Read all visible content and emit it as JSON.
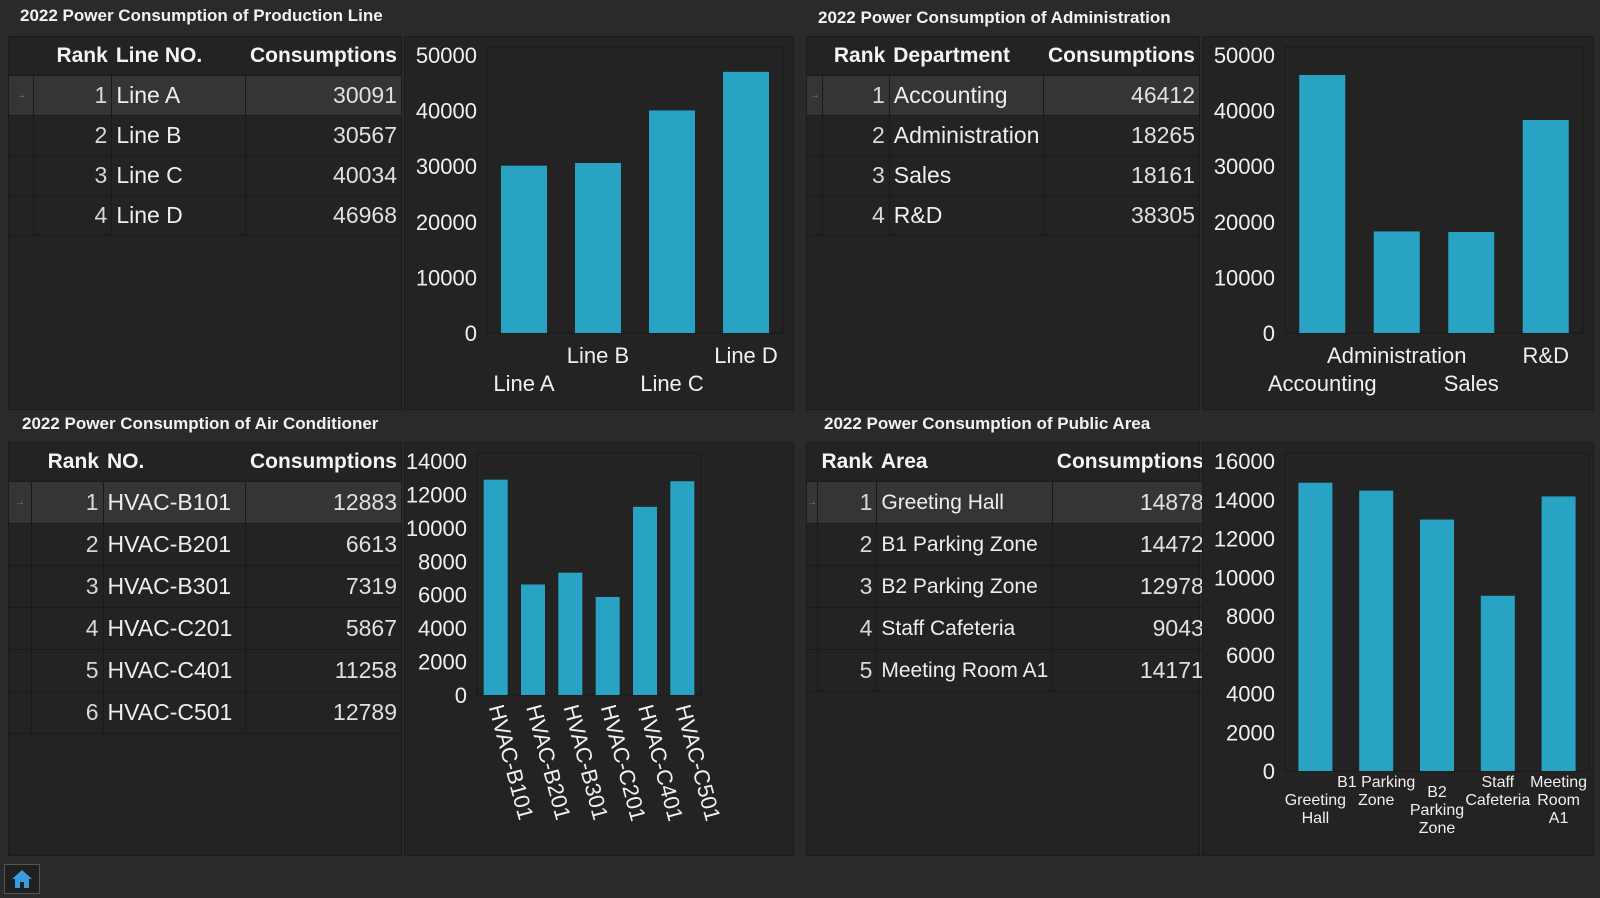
{
  "colors": {
    "bar": "#29a3c4",
    "background": "#2a2a2a",
    "panel": "#232323"
  },
  "panels": {
    "production": {
      "title": "2022 Power Consumption of Production Line",
      "headers": [
        "Rank",
        "Line NO.",
        "Consumptions"
      ],
      "rows": [
        {
          "rank": "1",
          "name": "Line A",
          "value": "30091"
        },
        {
          "rank": "2",
          "name": "Line B",
          "value": "30567"
        },
        {
          "rank": "3",
          "name": "Line C",
          "value": "40034"
        },
        {
          "rank": "4",
          "name": "Line D",
          "value": "46968"
        }
      ]
    },
    "administration": {
      "title": "2022 Power Consumption of Administration",
      "headers": [
        "Rank",
        "Department",
        "Consumptions"
      ],
      "rows": [
        {
          "rank": "1",
          "name": "Accounting",
          "value": "46412"
        },
        {
          "rank": "2",
          "name": "Administration",
          "value": "18265"
        },
        {
          "rank": "3",
          "name": "Sales",
          "value": "18161"
        },
        {
          "rank": "4",
          "name": "R&D",
          "value": "38305"
        }
      ]
    },
    "aircon": {
      "title": "2022 Power Consumption of Air Conditioner",
      "headers": [
        "Rank",
        "NO.",
        "Consumptions"
      ],
      "rows": [
        {
          "rank": "1",
          "name": "HVAC-B101",
          "value": "12883"
        },
        {
          "rank": "2",
          "name": "HVAC-B201",
          "value": "6613"
        },
        {
          "rank": "3",
          "name": "HVAC-B301",
          "value": "7319"
        },
        {
          "rank": "4",
          "name": "HVAC-C201",
          "value": "5867"
        },
        {
          "rank": "5",
          "name": "HVAC-C401",
          "value": "11258"
        },
        {
          "rank": "6",
          "name": "HVAC-C501",
          "value": "12789"
        }
      ]
    },
    "public": {
      "title": "2022 Power Consumption of Public Area",
      "headers": [
        "Rank",
        "Area",
        "Consumptions"
      ],
      "rows": [
        {
          "rank": "1",
          "name": "Greeting Hall",
          "value": "14878"
        },
        {
          "rank": "2",
          "name": "B1 Parking Zone",
          "value": "14472"
        },
        {
          "rank": "3",
          "name": "B2 Parking Zone",
          "value": "12978"
        },
        {
          "rank": "4",
          "name": "Staff Cafeteria",
          "value": "9043"
        },
        {
          "rank": "5",
          "name": "Meeting Room A1",
          "value": "14171"
        }
      ]
    }
  },
  "chart_data": [
    {
      "id": "production",
      "type": "bar",
      "title": "2022 Power Consumption of Production Line",
      "categories": [
        "Line A",
        "Line B",
        "Line C",
        "Line D"
      ],
      "values": [
        30091,
        30567,
        40034,
        46968
      ],
      "ylim": [
        0,
        50000
      ],
      "yticks": [
        "0",
        "10000",
        "20000",
        "30000",
        "40000",
        "50000"
      ],
      "label_mode": "stagger"
    },
    {
      "id": "administration",
      "type": "bar",
      "title": "2022 Power Consumption of Administration",
      "categories": [
        "Accounting",
        "Administration",
        "Sales",
        "R&D"
      ],
      "values": [
        46412,
        18265,
        18161,
        38305
      ],
      "ylim": [
        0,
        50000
      ],
      "yticks": [
        "0",
        "10000",
        "20000",
        "30000",
        "40000",
        "50000"
      ],
      "label_mode": "stagger"
    },
    {
      "id": "aircon",
      "type": "bar",
      "title": "2022 Power Consumption of Air Conditioner",
      "categories": [
        "HVAC-B101",
        "HVAC-B201",
        "HVAC-B301",
        "HVAC-C201",
        "HVAC-C401",
        "HVAC-C501"
      ],
      "values": [
        12883,
        6613,
        7319,
        5867,
        11258,
        12789
      ],
      "ylim": [
        0,
        14000
      ],
      "yticks": [
        "0",
        "2000",
        "4000",
        "6000",
        "8000",
        "10000",
        "12000",
        "14000"
      ],
      "label_mode": "rotate"
    },
    {
      "id": "public",
      "type": "bar",
      "title": "2022 Power Consumption of Public Area",
      "categories": [
        "Greeting Hall",
        "B1 Parking Zone",
        "B2 Parking Zone",
        "Staff Cafeteria",
        "Meeting Room A1"
      ],
      "category_lines": [
        [
          "Greeting",
          "Hall"
        ],
        [
          "B1 Parking",
          "Zone"
        ],
        [
          "B2",
          "Parking",
          "Zone"
        ],
        [
          "Staff",
          "Cafeteria"
        ],
        [
          "Meeting",
          "Room",
          "A1"
        ]
      ],
      "values": [
        14878,
        14472,
        12978,
        9043,
        14171
      ],
      "ylim": [
        0,
        16000
      ],
      "yticks": [
        "0",
        "2000",
        "4000",
        "6000",
        "8000",
        "10000",
        "12000",
        "14000",
        "16000"
      ],
      "label_mode": "wrap"
    }
  ]
}
